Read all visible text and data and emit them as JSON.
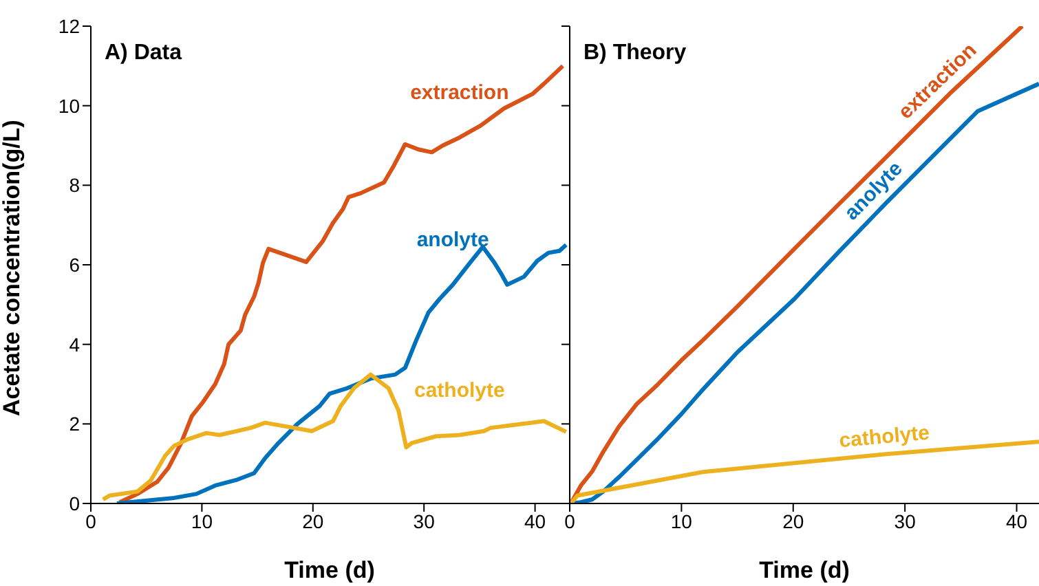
{
  "chart_data": [
    {
      "type": "line",
      "title": "A) Data",
      "xlabel": "Time (d)",
      "ylabel": "Acetate concentration(g/L)",
      "xlim": [
        0,
        43
      ],
      "xticks": [
        0,
        10,
        20,
        30,
        40
      ],
      "ylim": [
        0,
        12
      ],
      "yticks": [
        0,
        2,
        4,
        6,
        8,
        10,
        12
      ],
      "marker": "none",
      "line_style": "solid",
      "series": [
        {
          "name": "extraction",
          "color": "#d95319",
          "x": [
            2.6,
            4.2,
            6.0,
            7.0,
            8.1,
            9.1,
            10.1,
            11.2,
            12.0,
            12.4,
            13.5,
            13.9,
            14.7,
            15.1,
            15.5,
            16.0,
            19.4,
            20.9,
            21.8,
            22.7,
            23.2,
            24.3,
            26.4,
            27.3,
            28.3,
            29.5,
            30.7,
            31.7,
            33.2,
            35.1,
            37.2,
            39.8,
            40.8,
            42.5
          ],
          "values": [
            0.03,
            0.24,
            0.55,
            0.9,
            1.5,
            2.2,
            2.55,
            3.0,
            3.5,
            4.0,
            4.35,
            4.75,
            5.2,
            5.55,
            6.05,
            6.4,
            6.07,
            6.6,
            7.05,
            7.4,
            7.7,
            7.8,
            8.07,
            8.5,
            9.03,
            8.9,
            8.83,
            9.0,
            9.2,
            9.5,
            9.93,
            10.3,
            10.55,
            11.0
          ]
        },
        {
          "name": "anolyte",
          "color": "#0072bd",
          "x": [
            2.35,
            4.6,
            7.5,
            9.5,
            11.2,
            13.2,
            14.7,
            15.7,
            16.9,
            18.6,
            20.6,
            21.5,
            23.1,
            25.2,
            27.4,
            28.3,
            29.3,
            30.4,
            31.4,
            32.6,
            34.2,
            35.3,
            36.3,
            36.9,
            37.5,
            39.0,
            40.2,
            41.2,
            42.2,
            42.8
          ],
          "values": [
            0,
            0.06,
            0.14,
            0.24,
            0.45,
            0.6,
            0.76,
            1.14,
            1.52,
            2.0,
            2.45,
            2.76,
            2.9,
            3.14,
            3.24,
            3.41,
            4.1,
            4.8,
            5.14,
            5.5,
            6.07,
            6.45,
            6.07,
            5.8,
            5.5,
            5.7,
            6.1,
            6.3,
            6.35,
            6.5
          ]
        },
        {
          "name": "catholyte",
          "color": "#edb120",
          "x": [
            1.1,
            1.7,
            4.2,
            5.4,
            6.7,
            7.5,
            8.8,
            10.4,
            11.6,
            14.4,
            15.7,
            19.9,
            21.8,
            22.5,
            23.7,
            25.2,
            26.8,
            27.7,
            28.4,
            28.9,
            31.1,
            33.2,
            35.4,
            36.0,
            40.8,
            42.8
          ],
          "values": [
            0.1,
            0.2,
            0.3,
            0.58,
            1.2,
            1.45,
            1.62,
            1.77,
            1.72,
            1.9,
            2.03,
            1.82,
            2.07,
            2.45,
            2.9,
            3.24,
            2.9,
            2.34,
            1.41,
            1.52,
            1.69,
            1.72,
            1.82,
            1.9,
            2.07,
            1.8
          ]
        }
      ]
    },
    {
      "type": "line",
      "title": "B) Theory",
      "xlabel": "Time (d)",
      "xlim": [
        0,
        42
      ],
      "xticks": [
        0,
        10,
        20,
        30,
        40
      ],
      "ylim": [
        0,
        12
      ],
      "yticks": [
        0,
        2,
        4,
        6,
        8,
        10,
        12
      ],
      "tick_labels": "x",
      "marker": "none",
      "line_style": "solid",
      "series": [
        {
          "name": "extraction",
          "color": "#d95319",
          "x": [
            0.1,
            1.0,
            2.0,
            3.0,
            4.4,
            6.0,
            7.8,
            10.0,
            11.9,
            15.0,
            20.1,
            24.0,
            28.3,
            34.0,
            40.5
          ],
          "values": [
            0,
            0.45,
            0.8,
            1.3,
            1.93,
            2.5,
            2.97,
            3.6,
            4.1,
            4.95,
            6.4,
            7.5,
            8.7,
            10.3,
            12.0
          ]
        },
        {
          "name": "anolyte",
          "color": "#0072bd",
          "x": [
            0.1,
            1.0,
            2.0,
            3.0,
            4.4,
            6.0,
            7.8,
            10.0,
            11.9,
            15.0,
            20.1,
            24.0,
            28.3,
            36.5,
            42.0
          ],
          "values": [
            0,
            0.03,
            0.1,
            0.3,
            0.66,
            1.1,
            1.6,
            2.25,
            2.86,
            3.8,
            5.14,
            6.3,
            7.55,
            9.86,
            10.55
          ]
        },
        {
          "name": "catholyte",
          "color": "#edb120",
          "x": [
            0.1,
            0.7,
            11.9,
            28.3,
            42.0
          ],
          "values": [
            0,
            0.2,
            0.79,
            1.24,
            1.55
          ]
        }
      ]
    }
  ]
}
